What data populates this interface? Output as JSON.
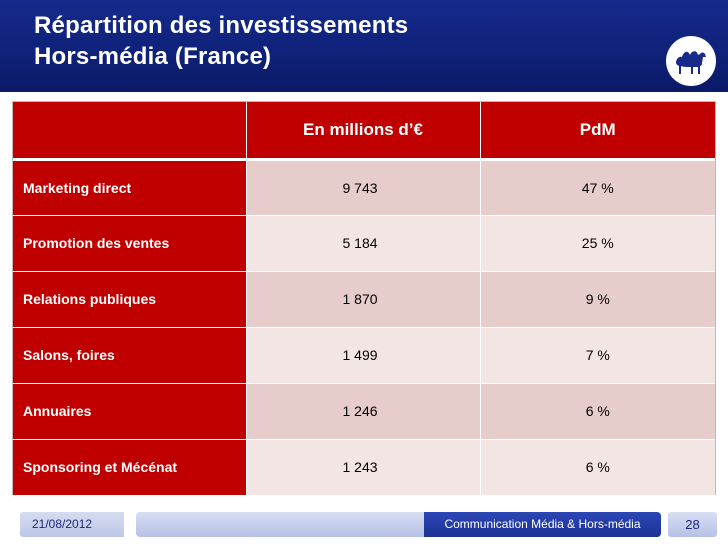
{
  "header": {
    "title_line1": "Répartition des investissements",
    "title_line2": "Hors-média (France)"
  },
  "logo": {
    "icon": "camel-icon"
  },
  "table": {
    "columns": [
      "",
      "En millions d’€",
      "PdM"
    ],
    "rows": [
      {
        "label": "Marketing direct",
        "value": "9 743",
        "pdm": "47 %"
      },
      {
        "label": "Promotion des ventes",
        "value": "5 184",
        "pdm": "25 %"
      },
      {
        "label": "Relations publiques",
        "value": "1 870",
        "pdm": "9 %"
      },
      {
        "label": "Salons, foires",
        "value": "1 499",
        "pdm": "7 %"
      },
      {
        "label": "Annuaires",
        "value": "1 246",
        "pdm": "6 %"
      },
      {
        "label": "Sponsoring et Mécénat",
        "value": "1 243",
        "pdm": "6 %"
      }
    ]
  },
  "footer": {
    "date": "21/08/2012",
    "center": "Communication Média & Hors-média",
    "page": "28"
  },
  "colors": {
    "header_blue": "#0f2178",
    "label_red": "#c00000",
    "row_dark": "#e7cccc",
    "row_light": "#f4e5e5"
  }
}
